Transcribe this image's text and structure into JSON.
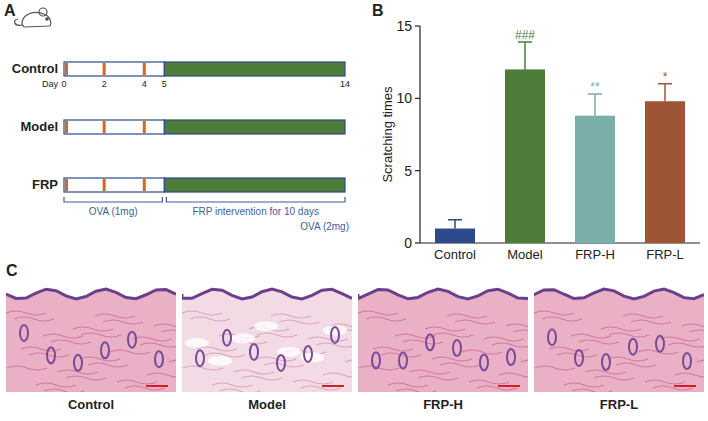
{
  "panel_labels": [
    "A",
    "B",
    "C"
  ],
  "timeline": {
    "groups": [
      "Control",
      "Model",
      "FRP"
    ],
    "day_label": "Day",
    "days": [
      0,
      2,
      4,
      5,
      14
    ],
    "ova_days": [
      0,
      2,
      4
    ],
    "xlim": [
      0,
      14
    ],
    "phases": [
      {
        "label": "OVA (1mg)",
        "start": 0,
        "end": 5
      },
      {
        "label": "FRP intervention for 10 days",
        "start": 5,
        "end": 14
      }
    ],
    "final_label": "OVA (2mg)"
  },
  "chart_data": {
    "type": "bar",
    "categories": [
      "Control",
      "Model",
      "FRP-H",
      "FRP-L"
    ],
    "values": [
      1,
      12,
      8.8,
      9.8
    ],
    "errors": [
      0.6,
      1.9,
      1.5,
      1.2
    ],
    "colors": [
      "#2d4a8a",
      "#4e7d3a",
      "#7aaea8",
      "#9e5535"
    ],
    "significance": [
      null,
      "###",
      "**",
      "*"
    ],
    "y_label": "Scratching times",
    "ylim": [
      0,
      15
    ],
    "yticks": [
      0,
      5,
      10,
      15
    ]
  },
  "histology": {
    "labels": [
      "Control",
      "Model",
      "FRP-H",
      "FRP-L"
    ]
  }
}
